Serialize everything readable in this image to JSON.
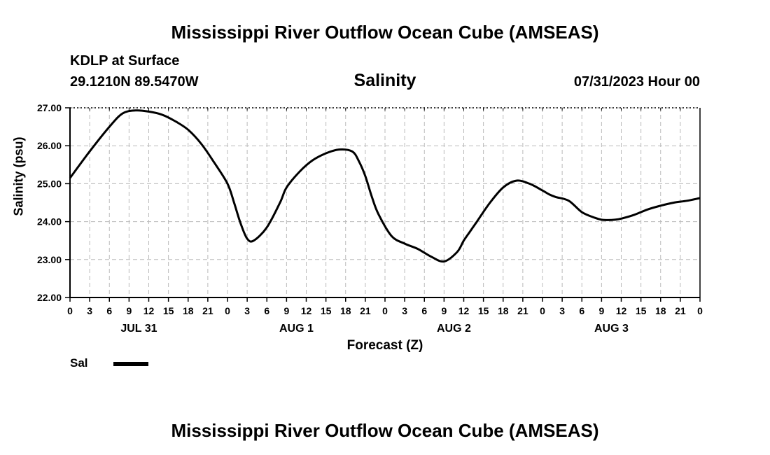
{
  "header": {
    "title": "Mississippi River Outflow Ocean Cube (AMSEAS)",
    "station": "KDLP at Surface",
    "location": "29.1210N  89.5470W",
    "datetime": "07/31/2023 Hour 00",
    "footer_title": "Mississippi River Outflow Ocean Cube (AMSEAS)"
  },
  "chart_data": {
    "type": "line",
    "title": "Salinity",
    "xlabel": "Forecast (Z)",
    "ylabel": "Salinity (psu)",
    "ylim": [
      22.0,
      27.0
    ],
    "xlim": [
      0,
      96
    ],
    "x_unit": "forecast hour",
    "grid": true,
    "legend_position": "bottom-left",
    "y_ticks": [
      "22.00",
      "23.00",
      "24.00",
      "25.00",
      "26.00",
      "27.00"
    ],
    "x_tick_labels": [
      "0",
      "3",
      "6",
      "9",
      "12",
      "15",
      "18",
      "21",
      "0",
      "3",
      "6",
      "9",
      "12",
      "15",
      "18",
      "21",
      "0",
      "3",
      "6",
      "9",
      "12",
      "15",
      "18",
      "21",
      "0",
      "3",
      "6",
      "9",
      "12",
      "15",
      "18",
      "21",
      "0"
    ],
    "day_labels": [
      "JUL 31",
      "AUG 1",
      "AUG 2",
      "AUG 3"
    ],
    "series": [
      {
        "name": "Sal",
        "color": "#000000",
        "x": [
          0,
          3,
          6,
          8,
          10,
          12,
          14,
          16,
          18,
          20,
          22,
          24,
          25,
          26,
          27,
          28,
          30,
          32,
          33,
          35,
          37,
          39,
          41,
          43,
          44,
          45,
          46,
          47,
          49,
          51,
          53,
          55,
          57,
          59,
          60,
          61,
          62,
          64,
          66,
          68,
          70,
          72,
          73,
          74,
          76,
          78,
          80,
          81,
          82,
          83,
          84,
          86,
          88,
          90,
          92,
          94,
          96
        ],
        "values": [
          25.15,
          25.85,
          26.5,
          26.85,
          26.93,
          26.9,
          26.82,
          26.65,
          26.42,
          26.05,
          25.55,
          25.0,
          24.5,
          23.95,
          23.55,
          23.5,
          23.85,
          24.5,
          24.9,
          25.32,
          25.62,
          25.8,
          25.9,
          25.85,
          25.6,
          25.2,
          24.65,
          24.2,
          23.62,
          23.42,
          23.28,
          23.08,
          22.95,
          23.2,
          23.5,
          23.75,
          24.0,
          24.5,
          24.9,
          25.08,
          25.0,
          24.82,
          24.72,
          24.65,
          24.55,
          24.25,
          24.1,
          24.05,
          24.04,
          24.05,
          24.08,
          24.18,
          24.32,
          24.42,
          24.5,
          24.55,
          24.62
        ]
      }
    ]
  }
}
